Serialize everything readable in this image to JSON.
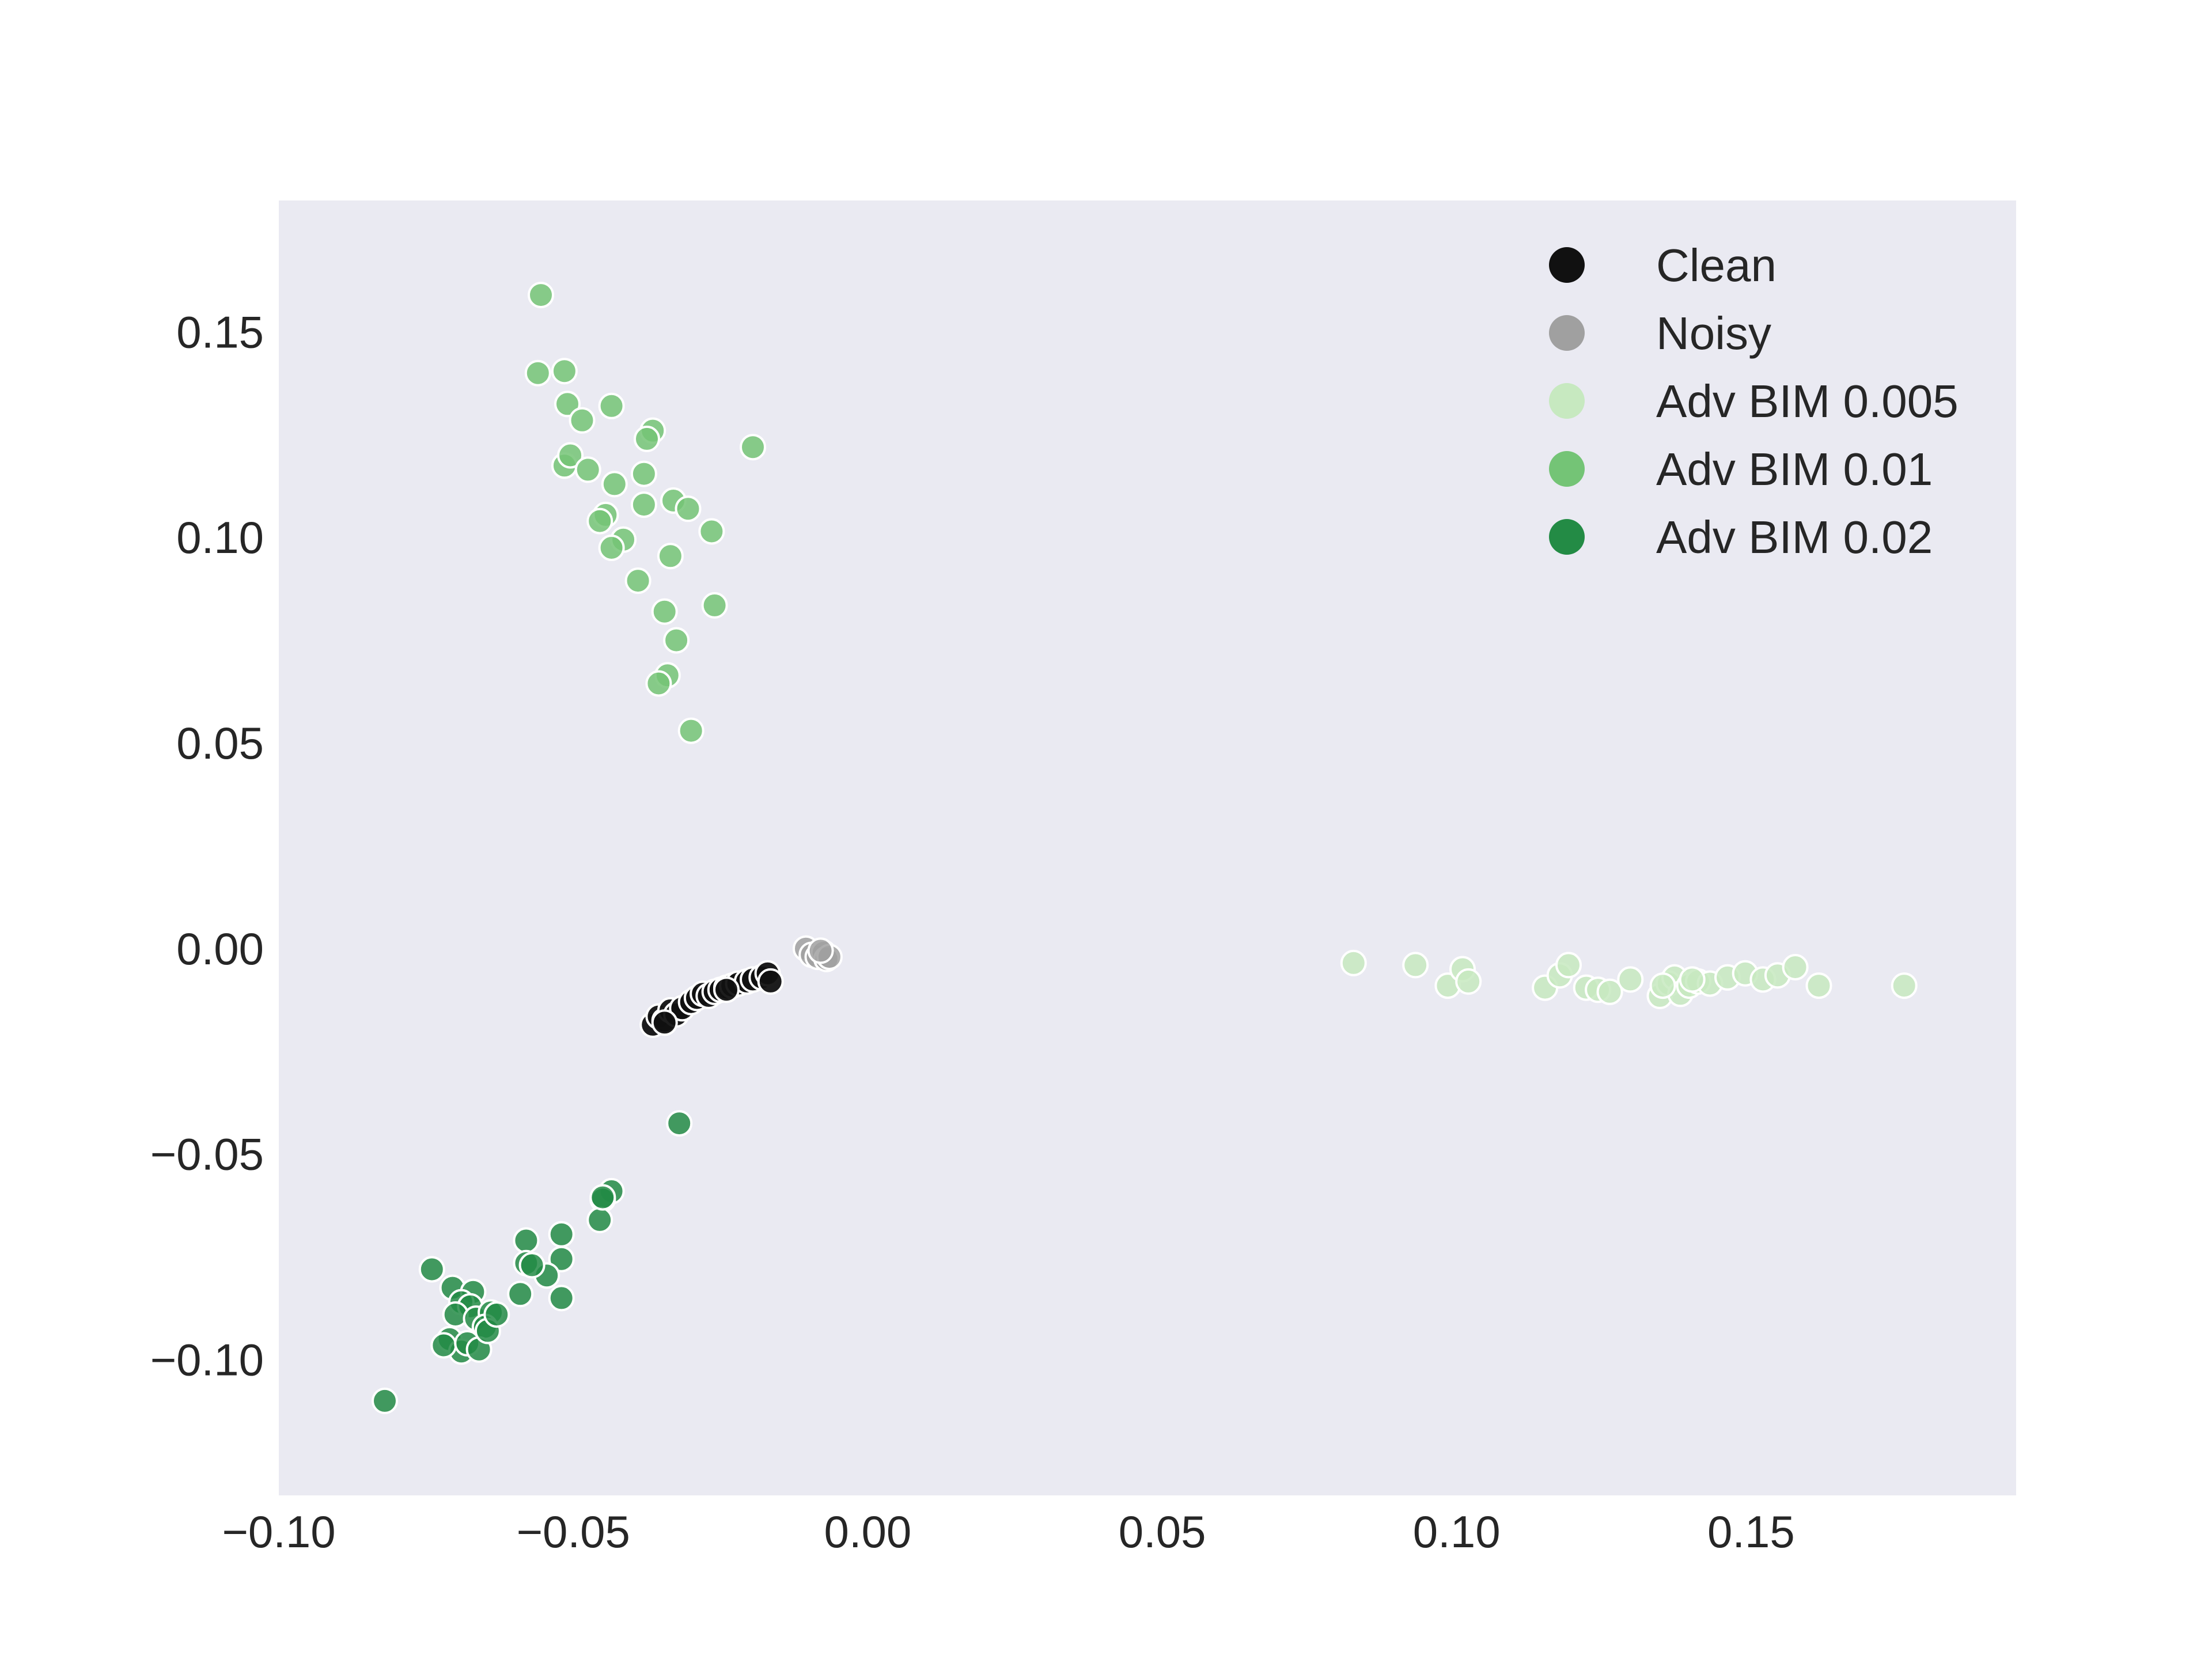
{
  "chart_data": {
    "type": "scatter",
    "title": "",
    "xlabel": "",
    "ylabel": "",
    "xlim": [
      -0.1,
      0.195
    ],
    "ylim": [
      -0.133,
      0.182
    ],
    "xticks": [
      -0.1,
      -0.05,
      0.0,
      0.05,
      0.1,
      0.15
    ],
    "xtick_labels": [
      "−0.10",
      "−0.05",
      "0.00",
      "0.05",
      "0.10",
      "0.15"
    ],
    "yticks": [
      -0.1,
      -0.05,
      0.0,
      0.05,
      0.1,
      0.15
    ],
    "ytick_labels": [
      "−0.10",
      "−0.05",
      "0.00",
      "0.05",
      "0.10",
      "0.15"
    ],
    "grid": false,
    "legend_position": "top-right",
    "background_color": "#eaeaf2",
    "series": [
      {
        "name": "Clean",
        "color": "#111111",
        "points": [
          [
            -0.0365,
            -0.0185
          ],
          [
            -0.0355,
            -0.0165
          ],
          [
            -0.0345,
            -0.0175
          ],
          [
            -0.0335,
            -0.015
          ],
          [
            -0.0325,
            -0.016
          ],
          [
            -0.0315,
            -0.0145
          ],
          [
            -0.03,
            -0.013
          ],
          [
            -0.029,
            -0.012
          ],
          [
            -0.028,
            -0.011
          ],
          [
            -0.027,
            -0.0115
          ],
          [
            -0.026,
            -0.0105
          ],
          [
            -0.025,
            -0.01
          ],
          [
            -0.024,
            -0.0095
          ],
          [
            -0.023,
            -0.009
          ],
          [
            -0.022,
            -0.0085
          ],
          [
            -0.0205,
            -0.008
          ],
          [
            -0.0195,
            -0.0075
          ],
          [
            -0.018,
            -0.007
          ],
          [
            -0.017,
            -0.006
          ],
          [
            -0.0165,
            -0.008
          ],
          [
            -0.0345,
            -0.018
          ],
          [
            -0.024,
            -0.01
          ]
        ]
      },
      {
        "name": "Noisy",
        "color": "#a0a0a0",
        "points": [
          [
            -0.0105,
            0.0
          ],
          [
            -0.0095,
            -0.0015
          ],
          [
            -0.0085,
            -0.002
          ],
          [
            -0.0075,
            -0.001
          ],
          [
            -0.007,
            -0.0025
          ],
          [
            -0.0065,
            -0.002
          ],
          [
            -0.008,
            -0.0005
          ]
        ]
      },
      {
        "name": "Adv BIM 0.005",
        "color": "#c7e9c0",
        "points": [
          [
            0.0825,
            -0.0035
          ],
          [
            0.093,
            -0.004
          ],
          [
            0.0985,
            -0.009
          ],
          [
            0.101,
            -0.005
          ],
          [
            0.102,
            -0.008
          ],
          [
            0.115,
            -0.0095
          ],
          [
            0.1175,
            -0.0065
          ],
          [
            0.119,
            -0.004
          ],
          [
            0.122,
            -0.0095
          ],
          [
            0.124,
            -0.01
          ],
          [
            0.126,
            -0.0105
          ],
          [
            0.1295,
            -0.0075
          ],
          [
            0.1345,
            -0.0115
          ],
          [
            0.136,
            -0.0085
          ],
          [
            0.137,
            -0.007
          ],
          [
            0.138,
            -0.011
          ],
          [
            0.1395,
            -0.009
          ],
          [
            0.141,
            -0.008
          ],
          [
            0.143,
            -0.0085
          ],
          [
            0.146,
            -0.007
          ],
          [
            0.149,
            -0.006
          ],
          [
            0.152,
            -0.0075
          ],
          [
            0.1545,
            -0.0065
          ],
          [
            0.1575,
            -0.0045
          ],
          [
            0.1615,
            -0.009
          ],
          [
            0.176,
            -0.009
          ],
          [
            0.135,
            -0.009
          ],
          [
            0.14,
            -0.0075
          ]
        ]
      },
      {
        "name": "Adv BIM 0.01",
        "color": "#74c476",
        "points": [
          [
            -0.0555,
            0.159
          ],
          [
            -0.056,
            0.14
          ],
          [
            -0.0515,
            0.1405
          ],
          [
            -0.051,
            0.1325
          ],
          [
            -0.0435,
            0.132
          ],
          [
            -0.0485,
            0.1285
          ],
          [
            -0.0365,
            0.126
          ],
          [
            -0.0375,
            0.124
          ],
          [
            -0.0195,
            0.122
          ],
          [
            -0.0515,
            0.1175
          ],
          [
            -0.0505,
            0.12
          ],
          [
            -0.0475,
            0.1165
          ],
          [
            -0.038,
            0.1155
          ],
          [
            -0.043,
            0.113
          ],
          [
            -0.033,
            0.109
          ],
          [
            -0.0305,
            0.107
          ],
          [
            -0.038,
            0.108
          ],
          [
            -0.0445,
            0.1055
          ],
          [
            -0.0455,
            0.104
          ],
          [
            -0.0415,
            0.0995
          ],
          [
            -0.0435,
            0.0975
          ],
          [
            -0.0265,
            0.1015
          ],
          [
            -0.0335,
            0.0955
          ],
          [
            -0.039,
            0.0895
          ],
          [
            -0.0345,
            0.082
          ],
          [
            -0.026,
            0.0835
          ],
          [
            -0.0325,
            0.075
          ],
          [
            -0.034,
            0.0665
          ],
          [
            -0.0355,
            0.0645
          ],
          [
            -0.03,
            0.053
          ]
        ]
      },
      {
        "name": "Adv BIM 0.02",
        "color": "#238b45",
        "points": [
          [
            -0.032,
            -0.0425
          ],
          [
            -0.0435,
            -0.059
          ],
          [
            -0.045,
            -0.061
          ],
          [
            -0.0455,
            -0.066
          ],
          [
            -0.052,
            -0.0695
          ],
          [
            -0.058,
            -0.071
          ],
          [
            -0.052,
            -0.0755
          ],
          [
            -0.058,
            -0.0765
          ],
          [
            -0.0545,
            -0.0795
          ],
          [
            -0.057,
            -0.077
          ],
          [
            -0.059,
            -0.084
          ],
          [
            -0.052,
            -0.085
          ],
          [
            -0.074,
            -0.078
          ],
          [
            -0.0705,
            -0.0825
          ],
          [
            -0.067,
            -0.0835
          ],
          [
            -0.069,
            -0.086
          ],
          [
            -0.0675,
            -0.087
          ],
          [
            -0.07,
            -0.089
          ],
          [
            -0.0665,
            -0.09
          ],
          [
            -0.064,
            -0.0885
          ],
          [
            -0.065,
            -0.092
          ],
          [
            -0.071,
            -0.095
          ],
          [
            -0.069,
            -0.098
          ],
          [
            -0.072,
            -0.0965
          ],
          [
            -0.068,
            -0.096
          ],
          [
            -0.066,
            -0.0975
          ],
          [
            -0.0645,
            -0.093
          ],
          [
            -0.063,
            -0.089
          ],
          [
            -0.082,
            -0.11
          ],
          [
            -0.045,
            -0.0605
          ]
        ]
      }
    ]
  }
}
